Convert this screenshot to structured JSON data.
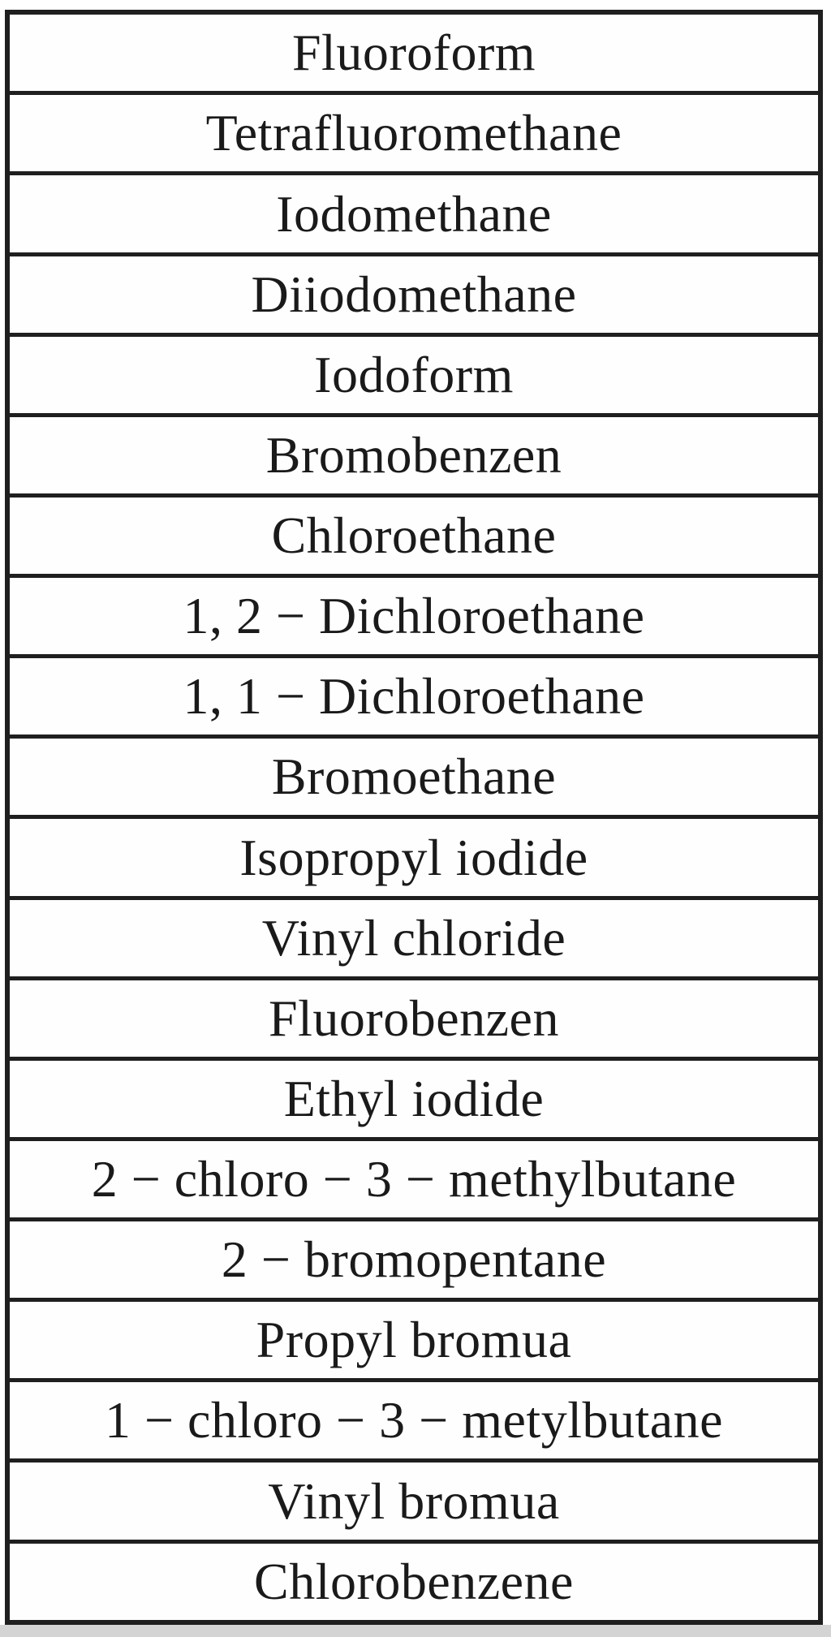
{
  "table": {
    "rows": [
      "Fluoroform",
      "Tetrafluoromethane",
      "Iodomethane",
      "Diiodomethane",
      "Iodoform",
      "Bromobenzen",
      "Chloroethane",
      "1, 2 − Dichloroethane",
      "1, 1 − Dichloroethane",
      "Bromoethane",
      "Isopropyl iodide",
      "Vinyl chloride",
      "Fluorobenzen",
      "Ethyl iodide",
      "2 − chloro − 3 − methylbutane",
      "2 − bromopentane",
      "Propyl bromua",
      "1 − chloro − 3 − metylbutane",
      "Vinyl bromua",
      "Chlorobenzene"
    ]
  },
  "colors": {
    "border": "#1f1f1f",
    "text": "#1a1a1a",
    "cell_background": "#fefefe",
    "bottom_strip": "#d4d4d4"
  }
}
